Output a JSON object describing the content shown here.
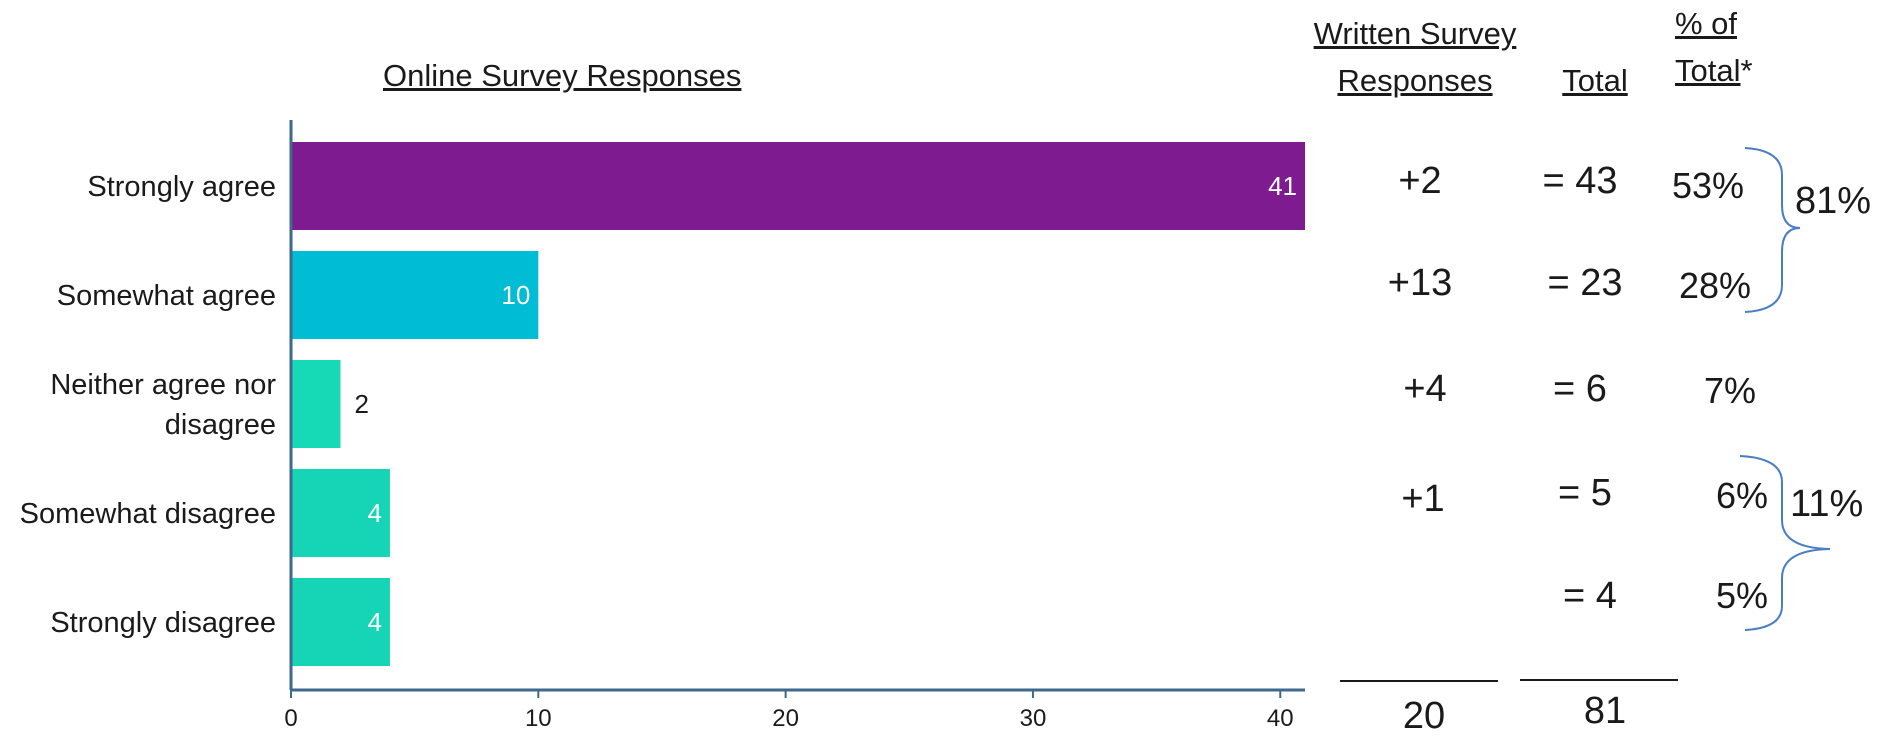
{
  "chart_data": {
    "type": "bar",
    "orientation": "horizontal",
    "title": "Online Survey Responses",
    "categories": [
      "Strongly agree",
      "Somewhat agree",
      "Neither agree nor disagree",
      "Somewhat disagree",
      "Strongly disagree"
    ],
    "category_lines": [
      [
        "Strongly agree"
      ],
      [
        "Somewhat agree"
      ],
      [
        "Neither agree nor",
        "disagree"
      ],
      [
        "Somewhat disagree"
      ],
      [
        "Strongly disagree"
      ]
    ],
    "values": [
      41,
      10,
      2,
      4,
      4
    ],
    "data_labels": [
      "41",
      "10",
      "2",
      "4",
      "4"
    ],
    "colors": [
      "#7E1B91",
      "#00BCD4",
      "#16D9B6",
      "#16D4B6",
      "#16D4B6"
    ],
    "xlim": [
      0,
      41
    ],
    "xticks": [
      0,
      10,
      20,
      30,
      40
    ],
    "grid": false,
    "axis_color": "#3D6A8C"
  },
  "table": {
    "written_header_line1": "Written Survey",
    "written_header_line2": "Responses",
    "total_header": "Total",
    "pct_header_line1": "% of",
    "pct_header_line2": "Total",
    "pct_header_suffix": "*",
    "written": [
      "+2",
      "+13",
      "+4",
      "+1",
      ""
    ],
    "totals": [
      "= 43",
      "= 23",
      "= 6",
      "= 5",
      "= 4"
    ],
    "percents": [
      "53%",
      "28%",
      "7%",
      "6%",
      "5%"
    ],
    "written_sum": "20",
    "total_sum": "81",
    "agree_group": "81%",
    "disagree_group": "11%",
    "brace_color": "#4A7EC4"
  }
}
